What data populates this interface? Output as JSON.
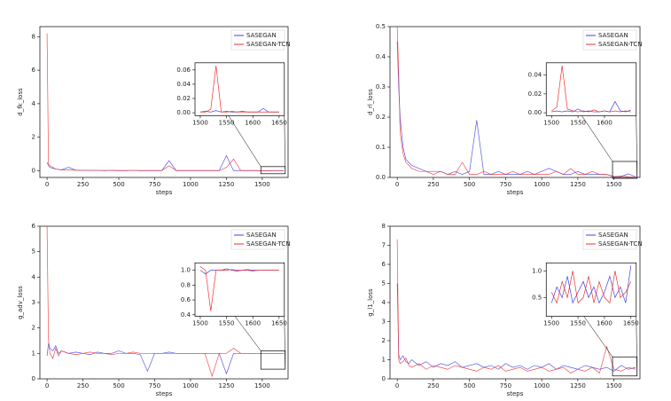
{
  "chart_data": [
    {
      "type": "line",
      "xlabel": "steps",
      "ylabel": "d_fk_loss",
      "x": [
        0,
        10,
        20,
        40,
        60,
        80,
        100,
        150,
        200,
        250,
        300,
        350,
        400,
        450,
        500,
        550,
        600,
        650,
        700,
        750,
        800,
        850,
        900,
        950,
        1000,
        1050,
        1100,
        1150,
        1200,
        1250,
        1300,
        1350,
        1400,
        1450,
        1500,
        1550,
        1600,
        1650
      ],
      "series": [
        {
          "name": "SASEGAN",
          "color": "#4040e0",
          "values": [
            0.5,
            0.3,
            0.2,
            0.15,
            0.1,
            0.08,
            0.05,
            0.2,
            0.03,
            0.02,
            0.02,
            0.02,
            0.01,
            0.02,
            0.01,
            0.01,
            0.02,
            0.01,
            0.01,
            0.01,
            0.01,
            0.6,
            0.01,
            0.01,
            0.01,
            0.01,
            0.01,
            0.01,
            0.01,
            0.9,
            0.01,
            0.01,
            0.01,
            0.01,
            0.002,
            0.003,
            0.006,
            0.001
          ]
        },
        {
          "name": "SASEGAN-TCN",
          "color": "#ee3030",
          "values": [
            8.2,
            0.4,
            0.3,
            0.2,
            0.1,
            0.08,
            0.05,
            0.05,
            0.03,
            0.02,
            0.02,
            0.02,
            0.01,
            0.02,
            0.01,
            0.01,
            0.02,
            0.01,
            0.01,
            0.01,
            0.01,
            0.3,
            0.01,
            0.01,
            0.01,
            0.01,
            0.01,
            0.01,
            0.01,
            0.2,
            0.7,
            0.01,
            0.01,
            0.01,
            0.002,
            0.002,
            0.002,
            0.001
          ]
        }
      ],
      "xlim": [
        -50,
        1680
      ],
      "ylim": [
        -0.4,
        8.6
      ],
      "xticks": [
        0,
        250,
        500,
        750,
        1000,
        1250,
        1500
      ],
      "yticks": [
        0,
        2,
        4,
        6,
        8
      ],
      "legend": "upper right",
      "inset": {
        "x": [
          1500,
          1510,
          1520,
          1530,
          1540,
          1550,
          1560,
          1570,
          1580,
          1590,
          1600,
          1610,
          1620,
          1630,
          1640,
          1650
        ],
        "series": [
          {
            "values": [
              0.001,
              0.002,
              0.001,
              0.003,
              0.001,
              0.002,
              0.001,
              0.001,
              0.002,
              0.001,
              0.001,
              0.001,
              0.006,
              0.001,
              0.001,
              0.001
            ]
          },
          {
            "values": [
              0.001,
              0.001,
              0.005,
              0.066,
              0.001,
              0.001,
              0.002,
              0.001,
              0.001,
              0.001,
              0.001,
              0.001,
              0.001,
              0.001,
              0.001,
              0.001
            ]
          }
        ],
        "xlim": [
          1490,
          1660
        ],
        "ylim": [
          -0.004,
          0.07
        ],
        "xticks": [
          1500,
          1550,
          1600,
          1650
        ],
        "yticks": [
          {
            "value": 0,
            "label": "0.00"
          },
          {
            "value": 0.02,
            "label": "0.02"
          },
          {
            "value": 0.04,
            "label": "0.04"
          },
          {
            "value": 0.06,
            "label": "0.06"
          }
        ]
      }
    },
    {
      "type": "line",
      "xlabel": "steps",
      "ylabel": "d_rl_loss",
      "x": [
        0,
        10,
        20,
        40,
        60,
        80,
        100,
        150,
        200,
        250,
        300,
        350,
        400,
        450,
        500,
        550,
        600,
        650,
        700,
        750,
        800,
        850,
        900,
        950,
        1000,
        1050,
        1100,
        1150,
        1200,
        1250,
        1300,
        1350,
        1400,
        1450,
        1500,
        1550,
        1600,
        1650
      ],
      "series": [
        {
          "name": "SASEGAN",
          "color": "#4040e0",
          "values": [
            0.45,
            0.3,
            0.2,
            0.1,
            0.06,
            0.05,
            0.04,
            0.03,
            0.02,
            0.02,
            0.02,
            0.01,
            0.02,
            0.01,
            0.02,
            0.19,
            0.01,
            0.01,
            0.02,
            0.01,
            0.01,
            0.01,
            0.02,
            0.01,
            0.02,
            0.03,
            0.02,
            0.01,
            0.01,
            0.02,
            0.01,
            0.01,
            0.01,
            0.01,
            0.003,
            0.003,
            0.012,
            0.002
          ]
        },
        {
          "name": "SASEGAN-TCN",
          "color": "#ee3030",
          "values": [
            0.5,
            0.35,
            0.15,
            0.08,
            0.05,
            0.04,
            0.03,
            0.02,
            0.02,
            0.01,
            0.02,
            0.01,
            0.01,
            0.05,
            0.01,
            0.01,
            0.02,
            0.01,
            0.01,
            0.01,
            0.02,
            0.01,
            0.01,
            0.01,
            0.01,
            0.01,
            0.02,
            0.01,
            0.03,
            0.01,
            0.01,
            0.02,
            0.01,
            0.01,
            0.002,
            0.005,
            0.002,
            0.001
          ]
        }
      ],
      "xlim": [
        -50,
        1680
      ],
      "ylim": [
        0,
        0.5
      ],
      "xticks": [
        0,
        250,
        500,
        750,
        1000,
        1250,
        1500
      ],
      "yticks": [
        {
          "value": 0,
          "label": "0.0"
        },
        {
          "value": 0.1,
          "label": "0.1"
        },
        {
          "value": 0.2,
          "label": "0.2"
        },
        {
          "value": 0.3,
          "label": "0.3"
        },
        {
          "value": 0.4,
          "label": "0.4"
        },
        {
          "value": 0.5,
          "label": "0.5"
        }
      ],
      "legend": "upper right",
      "inset": {
        "x": [
          1500,
          1510,
          1520,
          1530,
          1540,
          1550,
          1560,
          1570,
          1580,
          1590,
          1600,
          1610,
          1620,
          1630,
          1640,
          1650
        ],
        "series": [
          {
            "values": [
              0.001,
              0.002,
              0.001,
              0.002,
              0.001,
              0.004,
              0.001,
              0.002,
              0.001,
              0.001,
              0.002,
              0.001,
              0.012,
              0.002,
              0.001,
              0.003
            ]
          },
          {
            "values": [
              0.002,
              0.006,
              0.05,
              0.004,
              0.002,
              0.001,
              0.002,
              0.001,
              0.003,
              0.001,
              0.002,
              0.001,
              0.002,
              0.001,
              0.002,
              0.001
            ]
          }
        ],
        "xlim": [
          1490,
          1660
        ],
        "ylim": [
          -0.003,
          0.053
        ],
        "xticks": [
          1500,
          1550,
          1600
        ],
        "yticks": [
          {
            "value": 0,
            "label": "0.00"
          },
          {
            "value": 0.02,
            "label": "0.02"
          },
          {
            "value": 0.04,
            "label": "0.04"
          }
        ]
      }
    },
    {
      "type": "line",
      "xlabel": "steps",
      "ylabel": "g_adv_loss",
      "x": [
        0,
        10,
        20,
        40,
        60,
        80,
        100,
        150,
        200,
        250,
        300,
        350,
        400,
        450,
        500,
        550,
        600,
        650,
        700,
        750,
        800,
        850,
        900,
        950,
        1000,
        1050,
        1100,
        1150,
        1200,
        1250,
        1300,
        1350,
        1400,
        1450,
        1500,
        1550,
        1600,
        1650
      ],
      "series": [
        {
          "name": "SASEGAN",
          "color": "#4040e0",
          "values": [
            0.9,
            1.4,
            1.2,
            1.1,
            1.3,
            1.0,
            1.1,
            1.0,
            1.05,
            1.0,
            0.95,
            1.05,
            1.0,
            1.0,
            1.1,
            1.0,
            1.0,
            0.95,
            0.3,
            1.0,
            1.0,
            1.05,
            1.0,
            1.0,
            1.0,
            1.0,
            1.0,
            1.0,
            1.0,
            0.2,
            1.0,
            1.0,
            1.0,
            1.0,
            1.0,
            1.0,
            1.0,
            1.0
          ]
        },
        {
          "name": "SASEGAN-TCN",
          "color": "#ee3030",
          "values": [
            6,
            1.5,
            1.0,
            0.8,
            1.2,
            0.9,
            1.1,
            1.0,
            0.95,
            1.0,
            1.05,
            1.0,
            1.0,
            0.95,
            1.0,
            1.0,
            1.05,
            1.0,
            1.0,
            1.0,
            1.0,
            1.0,
            1.0,
            1.0,
            1.0,
            1.0,
            1.0,
            0.1,
            1.0,
            1.0,
            1.2,
            1.0,
            1.0,
            1.0,
            1.0,
            1.0,
            1.0,
            1.0
          ]
        }
      ],
      "xlim": [
        -50,
        1680
      ],
      "ylim": [
        0,
        6
      ],
      "xticks": [
        0,
        250,
        500,
        750,
        1000,
        1250,
        1500
      ],
      "yticks": [
        0,
        1,
        2,
        3,
        4,
        5,
        6
      ],
      "legend": "upper right",
      "inset": {
        "x": [
          1500,
          1510,
          1520,
          1530,
          1540,
          1550,
          1560,
          1570,
          1580,
          1590,
          1600,
          1610,
          1620,
          1630,
          1640,
          1650
        ],
        "series": [
          {
            "values": [
              1.0,
              0.95,
              1.0,
              1.0,
              1.0,
              1.02,
              1.0,
              0.99,
              1.0,
              1.01,
              1.0,
              1.0,
              1.0,
              1.0,
              1.0,
              1.0
            ]
          },
          {
            "values": [
              1.05,
              1.0,
              0.45,
              1.0,
              1.0,
              1.0,
              1.01,
              1.0,
              1.0,
              1.0,
              0.99,
              1.0,
              1.0,
              1.0,
              1.0,
              1.0
            ]
          }
        ],
        "xlim": [
          1490,
          1660
        ],
        "ylim": [
          0.38,
          1.1
        ],
        "xticks": [
          1500,
          1550,
          1600,
          1650
        ],
        "yticks": [
          0.4,
          0.6,
          0.8,
          {
            "value": 1,
            "label": "1.0"
          }
        ]
      }
    },
    {
      "type": "line",
      "xlabel": "steps",
      "ylabel": "g_l1_loss",
      "x": [
        0,
        10,
        20,
        40,
        60,
        80,
        100,
        150,
        200,
        250,
        300,
        350,
        400,
        450,
        500,
        550,
        600,
        650,
        700,
        750,
        800,
        850,
        900,
        950,
        1000,
        1050,
        1100,
        1150,
        1200,
        1250,
        1300,
        1350,
        1400,
        1450,
        1500,
        1550,
        1600,
        1650
      ],
      "series": [
        {
          "name": "SASEGAN",
          "color": "#4040e0",
          "values": [
            5,
            1.3,
            1.0,
            1.2,
            0.9,
            0.8,
            1.0,
            0.7,
            0.9,
            0.6,
            0.8,
            0.7,
            0.9,
            0.6,
            0.7,
            0.8,
            0.6,
            0.7,
            0.5,
            0.8,
            0.6,
            0.7,
            0.5,
            0.7,
            0.6,
            0.8,
            0.5,
            0.7,
            0.6,
            0.5,
            0.7,
            0.6,
            0.5,
            0.6,
            0.4,
            0.7,
            0.5,
            0.6
          ]
        },
        {
          "name": "SASEGAN-TCN",
          "color": "#ee3030",
          "values": [
            7.3,
            1.0,
            0.8,
            0.9,
            1.1,
            0.7,
            0.6,
            0.8,
            0.5,
            0.7,
            0.6,
            0.5,
            0.7,
            0.6,
            0.5,
            0.4,
            0.6,
            0.5,
            0.7,
            0.4,
            0.5,
            0.6,
            0.4,
            0.5,
            0.6,
            0.4,
            0.5,
            0.6,
            0.3,
            0.5,
            0.4,
            0.6,
            0.3,
            1.7,
            0.5,
            0.4,
            0.6,
            0.5
          ]
        }
      ],
      "xlim": [
        -50,
        1680
      ],
      "ylim": [
        0,
        8
      ],
      "xticks": [
        0,
        250,
        500,
        750,
        1000,
        1250,
        1500
      ],
      "yticks": [
        0,
        1,
        2,
        3,
        4,
        5,
        6,
        7,
        8
      ],
      "legend": "upper right",
      "inset": {
        "x": [
          1500,
          1510,
          1520,
          1530,
          1540,
          1550,
          1560,
          1570,
          1580,
          1590,
          1600,
          1610,
          1620,
          1630,
          1640,
          1650
        ],
        "series": [
          {
            "values": [
              0.4,
              0.7,
              0.5,
              0.9,
              0.4,
              0.6,
              0.8,
              0.5,
              0.7,
              0.4,
              0.6,
              0.9,
              0.5,
              0.7,
              0.4,
              1.1
            ]
          },
          {
            "values": [
              0.6,
              0.4,
              0.8,
              0.5,
              1.0,
              0.4,
              0.5,
              0.9,
              0.4,
              0.8,
              0.5,
              0.4,
              1.0,
              0.5,
              0.6,
              0.8
            ]
          }
        ],
        "xlim": [
          1490,
          1660
        ],
        "ylim": [
          0.15,
          1.15
        ],
        "xticks": [
          1500,
          1550,
          1600,
          1650
        ],
        "yticks": [
          0.5,
          {
            "value": 1,
            "label": "1.0"
          }
        ]
      }
    }
  ]
}
